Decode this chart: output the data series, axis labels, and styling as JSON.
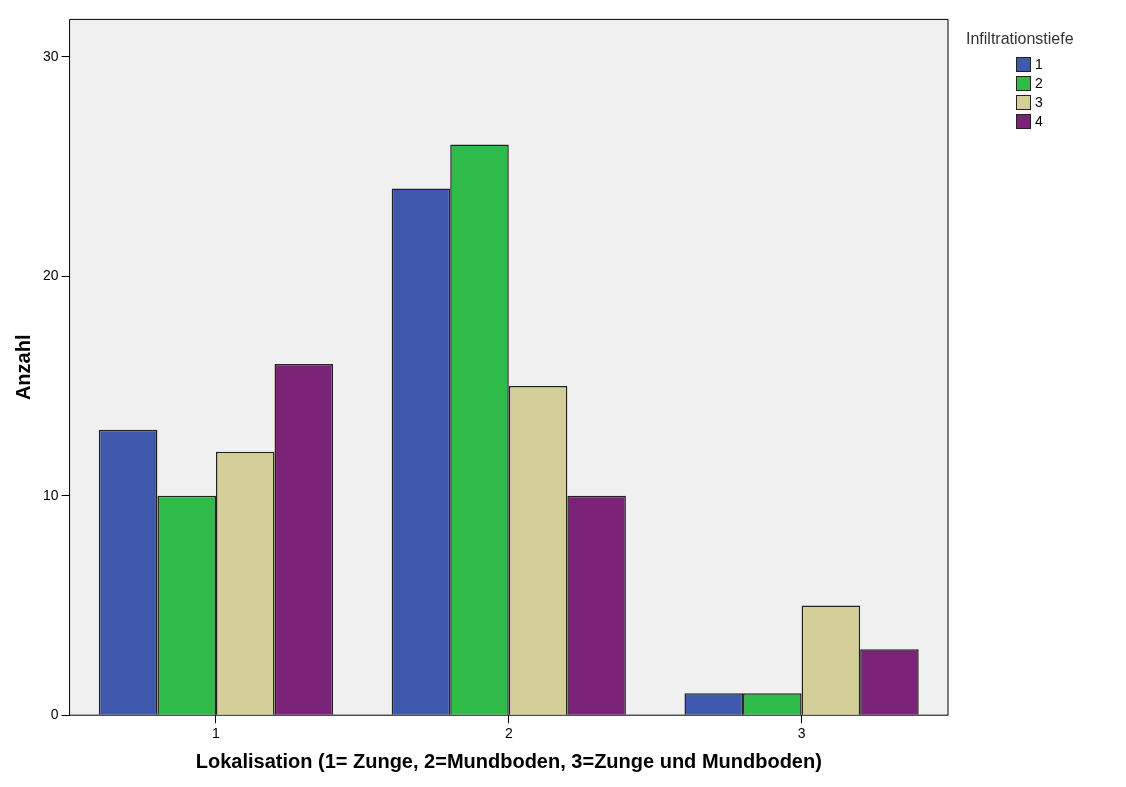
{
  "chart_data": {
    "type": "bar",
    "xlabel": "Lokalisation (1= Zunge, 2=Mundboden, 3=Zunge und Mundboden)",
    "ylabel": "Anzahl",
    "legend_title": "Infiltrationstiefe",
    "categories": [
      "1",
      "2",
      "3"
    ],
    "series": [
      {
        "name": "1",
        "color": "#3e58ac",
        "values": [
          13,
          24,
          1
        ]
      },
      {
        "name": "2",
        "color": "#2fbb4a",
        "values": [
          10,
          26,
          1
        ]
      },
      {
        "name": "3",
        "color": "#d4cf98",
        "values": [
          12,
          15,
          5
        ]
      },
      {
        "name": "4",
        "color": "#7b2377",
        "values": [
          16,
          10,
          3
        ]
      }
    ],
    "ylim": [
      0,
      31.7
    ],
    "yticks": [
      0,
      10,
      20,
      30
    ],
    "grid": false,
    "legend": "top right"
  }
}
